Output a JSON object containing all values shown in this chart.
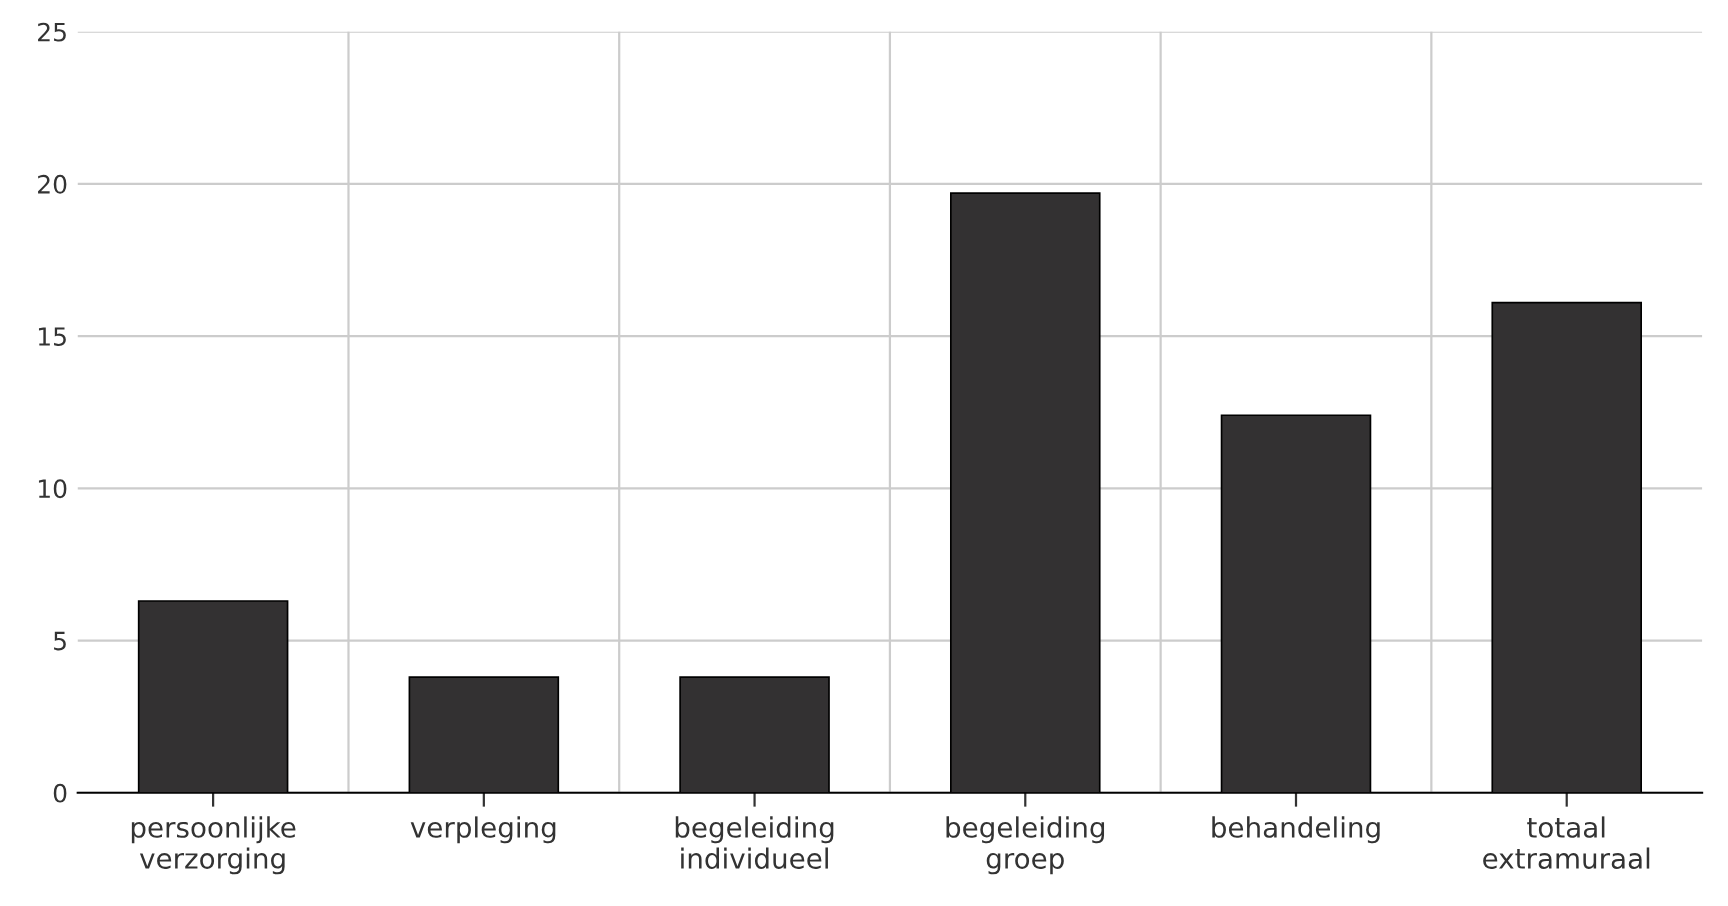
{
  "chart_data": {
    "type": "bar",
    "categories": [
      "persoonlijke\nverzorging",
      "verpleging",
      "begeleiding\nindividueel",
      "begeleiding\ngroep",
      "behandeling",
      "totaal\nextramuraal"
    ],
    "values": [
      6.3,
      3.8,
      3.8,
      19.7,
      12.4,
      16.1
    ],
    "color": "#333132",
    "ylim": [
      0,
      25
    ],
    "yticks": [
      0,
      5,
      10,
      15,
      20,
      25
    ],
    "grid": true
  }
}
